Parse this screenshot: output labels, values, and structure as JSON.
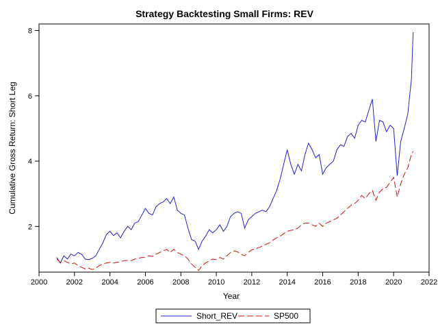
{
  "chart_data": {
    "type": "line",
    "title": "Strategy Backtesting Small Firms: REV",
    "xlabel": "Year",
    "ylabel": "Cumulative Gross Return: Short Leg",
    "xlim": [
      2000,
      2022
    ],
    "ylim": [
      0.6,
      8.2
    ],
    "x_ticks": [
      2000,
      2002,
      2004,
      2006,
      2008,
      2010,
      2012,
      2014,
      2016,
      2018,
      2020,
      2022
    ],
    "y_ticks": [
      2,
      4,
      6,
      8
    ],
    "grid": false,
    "legend_position": "bottom",
    "series": [
      {
        "name": "Short_REV",
        "color": "#2222cc",
        "dash": "solid",
        "x": [
          2001.0,
          2001.2,
          2001.4,
          2001.6,
          2001.8,
          2002.0,
          2002.2,
          2002.4,
          2002.6,
          2002.8,
          2003.0,
          2003.2,
          2003.4,
          2003.6,
          2003.8,
          2004.0,
          2004.2,
          2004.4,
          2004.6,
          2004.8,
          2005.0,
          2005.2,
          2005.4,
          2005.6,
          2005.8,
          2006.0,
          2006.2,
          2006.4,
          2006.6,
          2006.8,
          2007.0,
          2007.2,
          2007.4,
          2007.6,
          2007.8,
          2008.0,
          2008.2,
          2008.4,
          2008.6,
          2008.8,
          2009.0,
          2009.2,
          2009.4,
          2009.6,
          2009.8,
          2010.0,
          2010.2,
          2010.4,
          2010.6,
          2010.8,
          2011.0,
          2011.2,
          2011.4,
          2011.6,
          2011.8,
          2012.0,
          2012.2,
          2012.4,
          2012.6,
          2012.8,
          2013.0,
          2013.2,
          2013.4,
          2013.6,
          2013.8,
          2014.0,
          2014.2,
          2014.4,
          2014.6,
          2014.8,
          2015.0,
          2015.2,
          2015.4,
          2015.6,
          2015.8,
          2016.0,
          2016.2,
          2016.4,
          2016.6,
          2016.8,
          2017.0,
          2017.2,
          2017.4,
          2017.6,
          2017.8,
          2018.0,
          2018.2,
          2018.4,
          2018.6,
          2018.8,
          2019.0,
          2019.2,
          2019.4,
          2019.6,
          2019.8,
          2020.0,
          2020.2,
          2020.4,
          2020.6,
          2020.8,
          2021.0,
          2021.1
        ],
        "y": [
          1.05,
          0.88,
          1.1,
          1.0,
          1.15,
          1.1,
          1.2,
          1.15,
          1.0,
          0.98,
          1.02,
          1.1,
          1.3,
          1.5,
          1.75,
          1.85,
          1.72,
          1.8,
          1.65,
          1.85,
          2.0,
          1.9,
          2.1,
          2.15,
          2.35,
          2.55,
          2.4,
          2.35,
          2.6,
          2.7,
          2.75,
          2.85,
          2.7,
          2.9,
          2.5,
          2.4,
          2.35,
          1.95,
          1.6,
          1.55,
          1.3,
          1.55,
          1.7,
          1.9,
          1.8,
          1.9,
          2.05,
          1.85,
          2.0,
          2.3,
          2.4,
          2.45,
          2.4,
          1.95,
          2.2,
          2.3,
          2.4,
          2.45,
          2.5,
          2.45,
          2.6,
          2.85,
          3.1,
          3.45,
          3.9,
          4.35,
          3.9,
          3.6,
          3.9,
          3.7,
          4.2,
          4.55,
          4.35,
          4.1,
          4.2,
          3.6,
          3.8,
          3.9,
          4.0,
          4.35,
          4.5,
          4.45,
          4.75,
          4.85,
          4.7,
          5.1,
          5.25,
          5.2,
          5.55,
          5.9,
          4.6,
          5.25,
          5.2,
          4.9,
          5.1,
          5.0,
          3.55,
          4.6,
          5.0,
          5.45,
          6.5,
          7.95
        ]
      },
      {
        "name": "SP500",
        "color": "#cc1111",
        "dash": "dashed",
        "x": [
          2001.0,
          2001.2,
          2001.4,
          2001.6,
          2001.8,
          2002.0,
          2002.2,
          2002.4,
          2002.6,
          2002.8,
          2003.0,
          2003.2,
          2003.4,
          2003.6,
          2003.8,
          2004.0,
          2004.2,
          2004.4,
          2004.6,
          2004.8,
          2005.0,
          2005.2,
          2005.4,
          2005.6,
          2005.8,
          2006.0,
          2006.2,
          2006.4,
          2006.6,
          2006.8,
          2007.0,
          2007.2,
          2007.4,
          2007.6,
          2007.8,
          2008.0,
          2008.2,
          2008.4,
          2008.6,
          2008.8,
          2009.0,
          2009.2,
          2009.4,
          2009.6,
          2009.8,
          2010.0,
          2010.2,
          2010.4,
          2010.6,
          2010.8,
          2011.0,
          2011.2,
          2011.4,
          2011.6,
          2011.8,
          2012.0,
          2012.2,
          2012.4,
          2012.6,
          2012.8,
          2013.0,
          2013.2,
          2013.4,
          2013.6,
          2013.8,
          2014.0,
          2014.2,
          2014.4,
          2014.6,
          2014.8,
          2015.0,
          2015.2,
          2015.4,
          2015.6,
          2015.8,
          2016.0,
          2016.2,
          2016.4,
          2016.6,
          2016.8,
          2017.0,
          2017.2,
          2017.4,
          2017.6,
          2017.8,
          2018.0,
          2018.2,
          2018.4,
          2018.6,
          2018.8,
          2019.0,
          2019.2,
          2019.4,
          2019.6,
          2019.8,
          2020.0,
          2020.2,
          2020.4,
          2020.6,
          2020.8,
          2021.0,
          2021.1
        ],
        "y": [
          1.0,
          0.9,
          0.95,
          0.9,
          0.85,
          0.88,
          0.8,
          0.75,
          0.7,
          0.72,
          0.68,
          0.72,
          0.8,
          0.85,
          0.88,
          0.9,
          0.88,
          0.9,
          0.92,
          0.95,
          0.96,
          0.95,
          1.0,
          1.02,
          1.05,
          1.05,
          1.1,
          1.08,
          1.15,
          1.2,
          1.25,
          1.3,
          1.2,
          1.3,
          1.2,
          1.15,
          1.1,
          1.0,
          0.85,
          0.75,
          0.65,
          0.8,
          0.88,
          0.95,
          1.0,
          0.98,
          1.05,
          1.0,
          1.1,
          1.2,
          1.25,
          1.22,
          1.15,
          1.1,
          1.2,
          1.28,
          1.32,
          1.35,
          1.4,
          1.45,
          1.5,
          1.58,
          1.65,
          1.7,
          1.78,
          1.85,
          1.88,
          1.9,
          1.95,
          2.05,
          2.1,
          2.1,
          2.05,
          2.0,
          2.1,
          2.0,
          2.1,
          2.15,
          2.2,
          2.25,
          2.35,
          2.45,
          2.55,
          2.65,
          2.7,
          2.8,
          2.95,
          2.85,
          3.0,
          3.1,
          2.8,
          3.05,
          3.15,
          3.2,
          3.35,
          3.5,
          2.9,
          3.3,
          3.6,
          3.8,
          4.2,
          4.3
        ]
      }
    ]
  }
}
